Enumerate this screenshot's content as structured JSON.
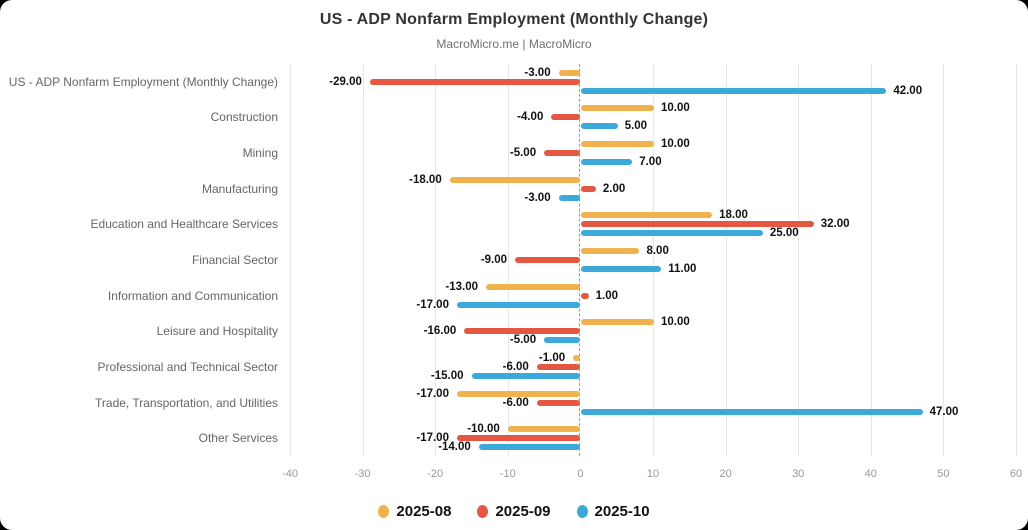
{
  "header": {
    "title": "US - ADP Nonfarm Employment (Monthly Change)",
    "subtitle": "MacroMicro.me | MacroMicro"
  },
  "chart_data": {
    "type": "bar",
    "orientation": "horizontal",
    "title": "US - ADP Nonfarm Employment (Monthly Change)",
    "subtitle": "MacroMicro.me | MacroMicro",
    "categories": [
      "US - ADP Nonfarm Employment (Monthly Change)",
      "Construction",
      "Mining",
      "Manufacturing",
      "Education and Healthcare Services",
      "Financial Sector",
      "Information and Communication",
      "Leisure and Hospitality",
      "Professional and Technical Sector",
      "Trade, Transportation, and Utilities",
      "Other Services"
    ],
    "series": [
      {
        "name": "2025-08",
        "color": "#F0B24C",
        "values": [
          -3.0,
          10.0,
          10.0,
          -18.0,
          18.0,
          8.0,
          -13.0,
          10.0,
          -1.0,
          -17.0,
          -10.0
        ]
      },
      {
        "name": "2025-09",
        "color": "#E45742",
        "values": [
          -29.0,
          -4.0,
          -5.0,
          2.0,
          32.0,
          -9.0,
          1.0,
          -16.0,
          -6.0,
          -6.0,
          -17.0
        ]
      },
      {
        "name": "2025-10",
        "color": "#3BA9D9",
        "values": [
          42.0,
          5.0,
          7.0,
          -3.0,
          25.0,
          11.0,
          -17.0,
          -5.0,
          -15.0,
          47.0,
          -14.0
        ]
      }
    ],
    "xlim": [
      -40,
      60
    ],
    "x_ticks": [
      -40,
      -30,
      -20,
      -10,
      0,
      10,
      20,
      30,
      40,
      50,
      60
    ],
    "value_label_decimals": 2,
    "grid": true,
    "zero_line": "dashed",
    "legend_position": "bottom"
  },
  "style": {
    "grid_color": "#e6e6e6",
    "zero_line_color": "#9a9a9a",
    "tick_label_color": "#999999",
    "category_label_color": "#666666",
    "value_label_color": "#111111"
  }
}
